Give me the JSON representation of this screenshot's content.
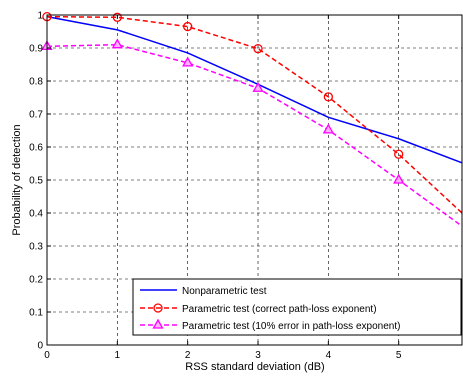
{
  "chart_data": {
    "type": "line",
    "xlabel": "RSS standard deviation (dB)",
    "ylabel": "Probability of detection",
    "xlim": [
      0,
      5.9
    ],
    "ylim": [
      0,
      1
    ],
    "xticks": [
      0,
      1,
      2,
      3,
      4,
      5
    ],
    "yticks": [
      0,
      0.1,
      0.2,
      0.3,
      0.4,
      0.5,
      0.6,
      0.7,
      0.8,
      0.9,
      1
    ],
    "grid": true,
    "legend_position": "bottom-right",
    "series": [
      {
        "name": "Nonparametric test",
        "color": "#0000ff",
        "line_style": "solid",
        "marker": "none",
        "x": [
          0,
          1,
          2,
          3,
          4,
          5,
          5.9
        ],
        "y": [
          0.995,
          0.955,
          0.885,
          0.79,
          0.69,
          0.625,
          0.552
        ]
      },
      {
        "name": "Parametric test (correct path-loss exponent)",
        "color": "#ff0000",
        "line_style": "dashed",
        "marker": "circle",
        "x": [
          0,
          1,
          2,
          3,
          4,
          5,
          5.9
        ],
        "y": [
          0.995,
          0.993,
          0.965,
          0.898,
          0.752,
          0.578,
          0.4
        ]
      },
      {
        "name": "Parametric test (10% error in path-loss exponent)",
        "color": "#ff00ff",
        "line_style": "dashed",
        "marker": "triangle",
        "x": [
          0,
          1,
          2,
          3,
          4,
          5,
          5.9
        ],
        "y": [
          0.905,
          0.91,
          0.855,
          0.778,
          0.652,
          0.5,
          0.36
        ]
      }
    ]
  }
}
